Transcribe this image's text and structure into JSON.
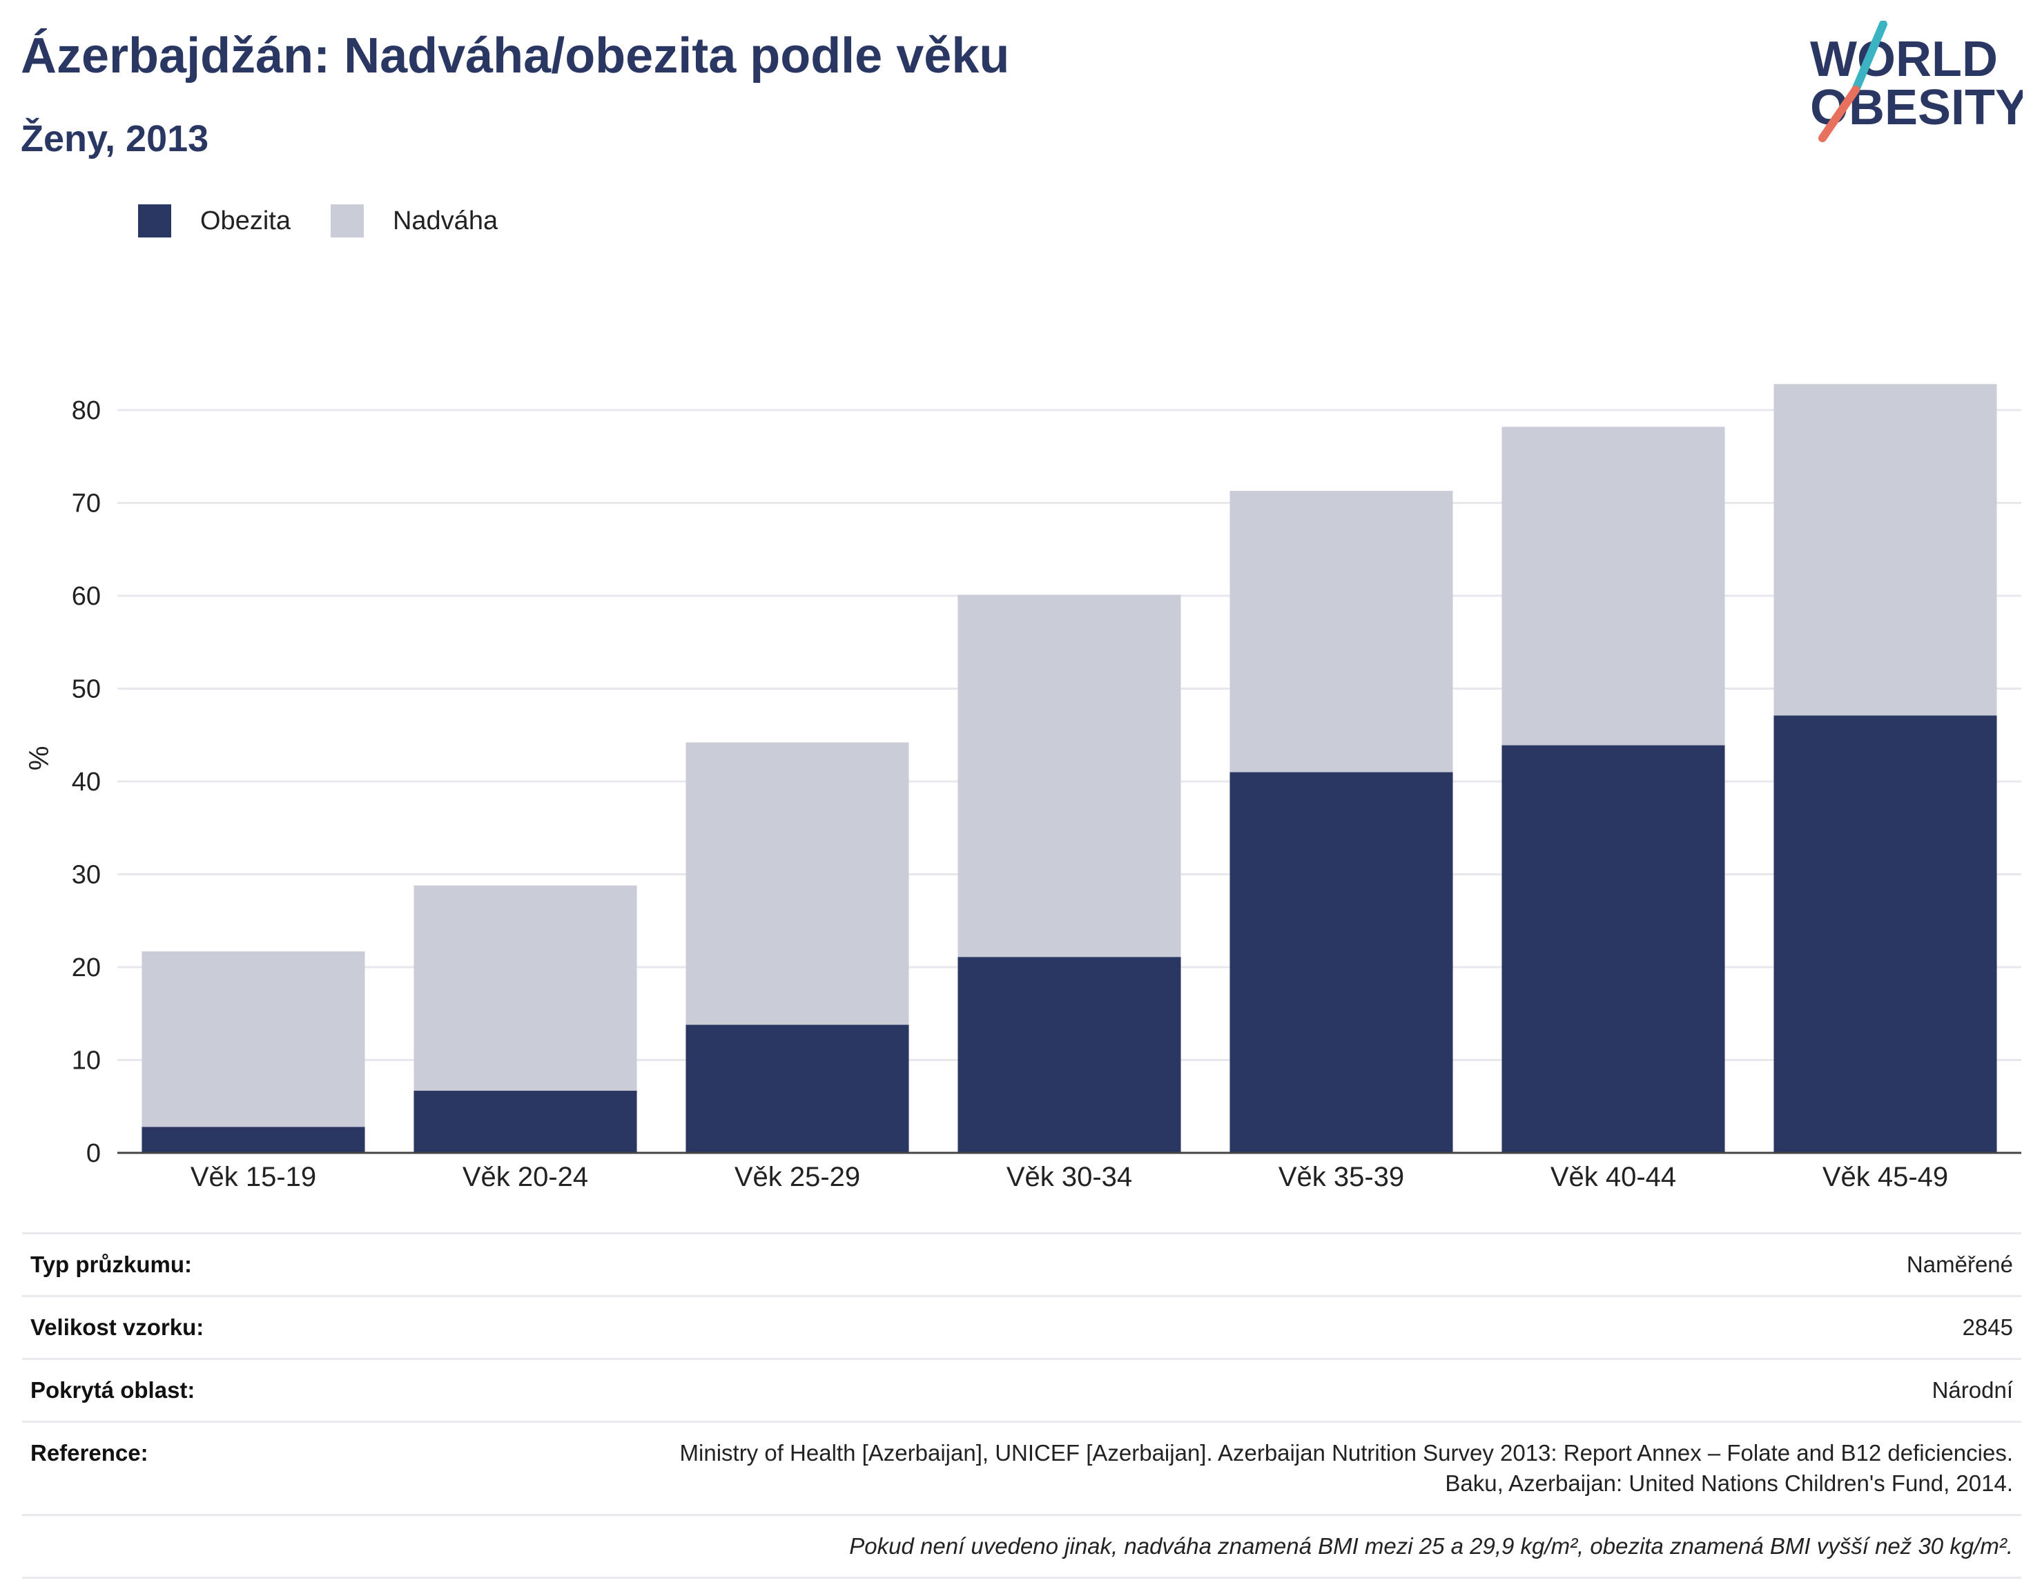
{
  "header": {
    "title": "Ázerbajdžán: Nadváha/obezita podle věku",
    "subtitle": "Ženy, 2013"
  },
  "logo": {
    "line1": "WORLD",
    "line2": "OBESITY"
  },
  "legend": [
    {
      "label": "Obezita",
      "color": "#2a3763"
    },
    {
      "label": "Nadváha",
      "color": "#cacdd8"
    }
  ],
  "chart_data": {
    "type": "bar",
    "stacked": true,
    "categories": [
      "Věk 15-19",
      "Věk 20-24",
      "Věk 25-29",
      "Věk 30-34",
      "Věk 35-39",
      "Věk 40-44",
      "Věk 45-49"
    ],
    "series": [
      {
        "name": "Obezita",
        "color": "#2a3763",
        "values": [
          2.8,
          6.7,
          13.8,
          21.1,
          41.0,
          43.9,
          47.1
        ]
      },
      {
        "name": "Nadváha",
        "color": "#cacdd8",
        "values": [
          18.9,
          22.1,
          30.4,
          39.0,
          30.3,
          34.3,
          35.7
        ]
      }
    ],
    "ylabel": "%",
    "ylim": [
      0,
      85
    ],
    "yticks": [
      0,
      10,
      20,
      30,
      40,
      50,
      60,
      70,
      80
    ],
    "grid": true,
    "legend_position": "top-left"
  },
  "info": {
    "survey_type_label": "Typ průzkumu:",
    "survey_type_value": "Naměřené",
    "sample_size_label": "Velikost vzorku:",
    "sample_size_value": "2845",
    "area_label": "Pokrytá oblast:",
    "area_value": "Národní",
    "reference_label": "Reference:",
    "reference_line1": "Ministry of Health [Azerbaijan], UNICEF [Azerbaijan]. Azerbaijan Nutrition Survey 2013: Report Annex – Folate and B12 deficiencies.",
    "reference_line2": "Baku, Azerbaijan: United Nations Children's Fund, 2014.",
    "note": "Pokud není uvedeno jinak, nadváha znamená BMI mezi 25 a 29,9 kg/m², obezita znamená BMI vyšší než 30 kg/m²."
  }
}
